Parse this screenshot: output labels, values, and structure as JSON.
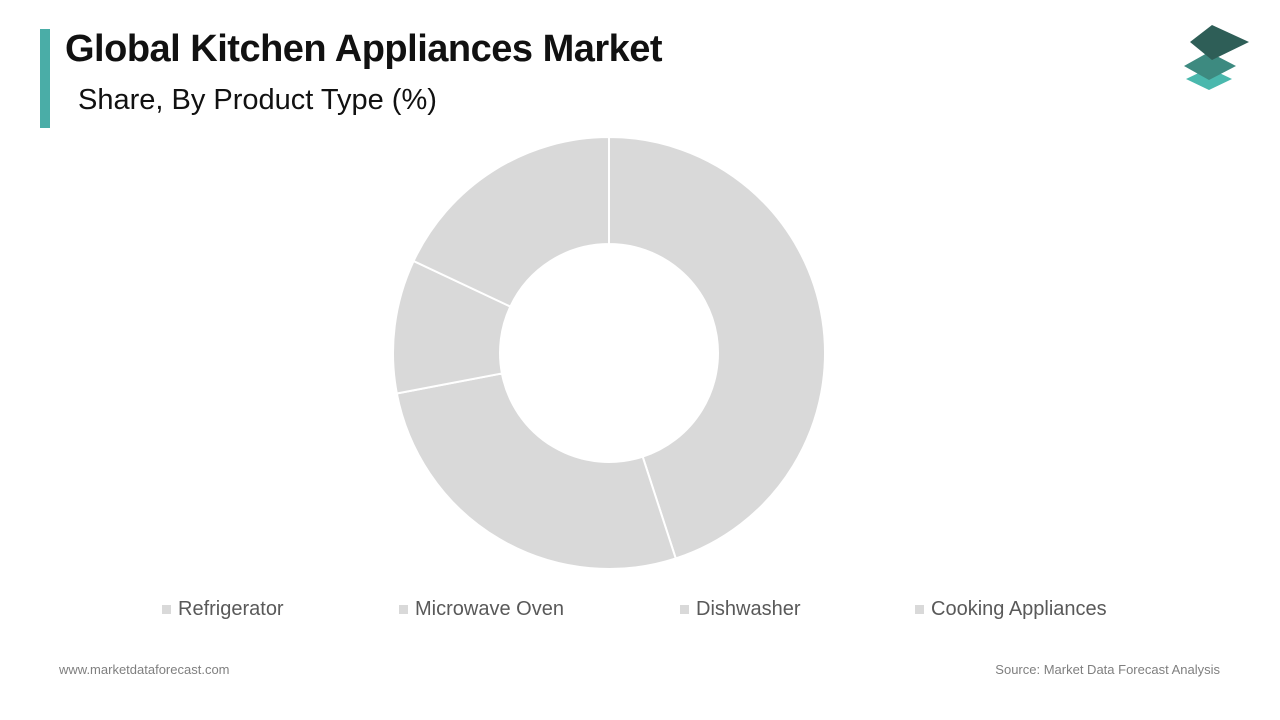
{
  "header": {
    "title": "Global Kitchen Appliances Market",
    "subtitle": "Share, By Product Type (%)",
    "accent_color": "#4aada7"
  },
  "logo": {
    "icon": "stacked-layers-icon",
    "colors": [
      "#2e5e57",
      "#3d8a80",
      "#4ab8ad"
    ]
  },
  "chart_data": {
    "type": "pie",
    "title": "Share, By Product Type (%)",
    "donut": true,
    "categories": [
      "Refrigerator",
      "Microwave Oven",
      "Dishwasher",
      "Cooking Appliances"
    ],
    "values": [
      45,
      27,
      10,
      18
    ],
    "colors": [
      "#d9d9d9",
      "#d9d9d9",
      "#d9d9d9",
      "#d9d9d9"
    ],
    "legend_position": "bottom"
  },
  "footer": {
    "website": "www.marketdataforecast.com",
    "source": "Source: Market Data Forecast Analysis"
  }
}
